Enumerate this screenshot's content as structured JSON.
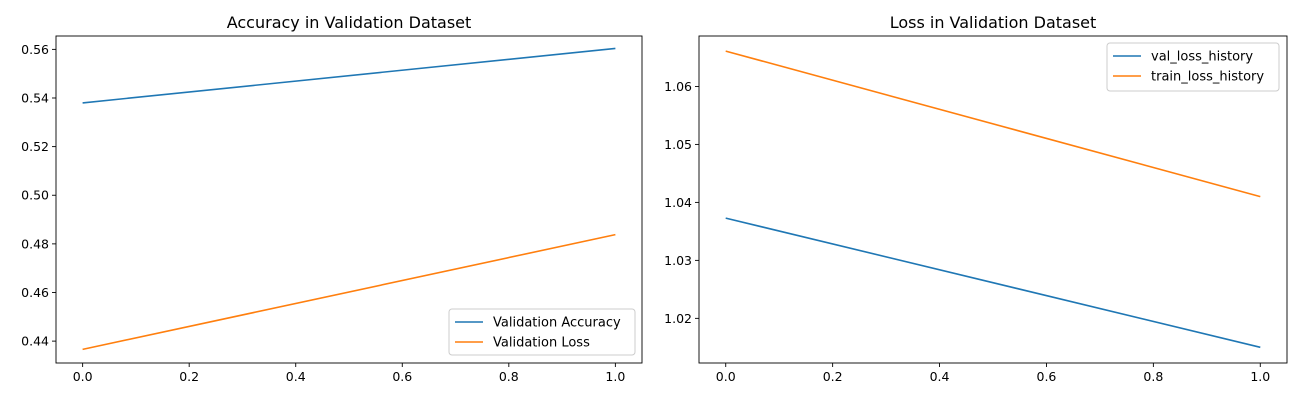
{
  "chart_data": [
    {
      "type": "line",
      "title": "Accuracy in Validation Dataset",
      "xlabel": "",
      "ylabel": "",
      "xlim": [
        -0.05,
        1.05
      ],
      "ylim": [
        0.431,
        0.5655
      ],
      "xticks": [
        0.0,
        0.2,
        0.4,
        0.6,
        0.8,
        1.0
      ],
      "xtick_labels": [
        "0.0",
        "0.2",
        "0.4",
        "0.6",
        "0.8",
        "1.0"
      ],
      "yticks": [
        0.44,
        0.46,
        0.48,
        0.5,
        0.52,
        0.54,
        0.56
      ],
      "ytick_labels": [
        "0.44",
        "0.46",
        "0.48",
        "0.50",
        "0.52",
        "0.54",
        "0.56"
      ],
      "legend_position": "lower-right",
      "grid": false,
      "series": [
        {
          "name": "Validation Accuracy",
          "color": "#1f77b4",
          "x": [
            0,
            1
          ],
          "y": [
            0.538,
            0.5604
          ]
        },
        {
          "name": "Validation Loss",
          "color": "#ff7f0e",
          "x": [
            0,
            1
          ],
          "y": [
            0.4366,
            0.4838
          ]
        }
      ]
    },
    {
      "type": "line",
      "title": "Loss in Validation Dataset",
      "xlabel": "",
      "ylabel": "",
      "xlim": [
        -0.05,
        1.05
      ],
      "ylim": [
        1.0123,
        1.0687
      ],
      "xticks": [
        0.0,
        0.2,
        0.4,
        0.6,
        0.8,
        1.0
      ],
      "xtick_labels": [
        "0.0",
        "0.2",
        "0.4",
        "0.6",
        "0.8",
        "1.0"
      ],
      "yticks": [
        1.02,
        1.03,
        1.04,
        1.05,
        1.06
      ],
      "ytick_labels": [
        "1.02",
        "1.03",
        "1.04",
        "1.05",
        "1.06"
      ],
      "legend_position": "upper-right",
      "grid": false,
      "series": [
        {
          "name": "val_loss_history",
          "color": "#1f77b4",
          "x": [
            0,
            1
          ],
          "y": [
            1.0373,
            1.015
          ]
        },
        {
          "name": "train_loss_history",
          "color": "#ff7f0e",
          "x": [
            0,
            1
          ],
          "y": [
            1.0661,
            1.041
          ]
        }
      ]
    }
  ]
}
